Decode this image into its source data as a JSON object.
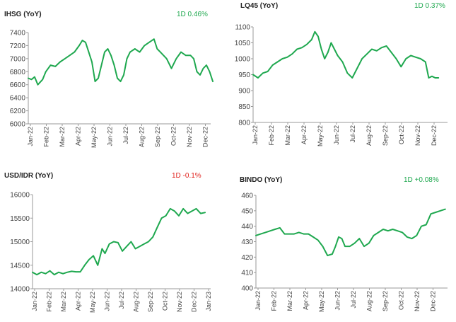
{
  "colors": {
    "line": "#1fa84f",
    "axis": "#9a9a9a",
    "text": "#444444",
    "positive": "#1fa84f",
    "negative": "#e0201b"
  },
  "chart_data": [
    {
      "id": "ihsg",
      "type": "line",
      "title": "IHSG (YoY)",
      "change_label": "1D 0.46%",
      "change_color": "positive",
      "ylim": [
        6000,
        7400
      ],
      "yticks": [
        "7400",
        "7200",
        "7000",
        "6800",
        "6600",
        "6400",
        "6200",
        "6000"
      ],
      "xticks": [
        "Jan-22",
        "Feb-22",
        "Mar-22",
        "Apr-22",
        "May-22",
        "Jun-22",
        "Jul-22",
        "Aug-22",
        "Sep-22",
        "Oct-22",
        "Nov-22",
        "Dec-22"
      ],
      "grid": false,
      "x": [
        0,
        0.2,
        0.4,
        0.6,
        0.9,
        1.1,
        1.4,
        1.7,
        2.0,
        2.3,
        2.6,
        2.9,
        3.2,
        3.4,
        3.6,
        3.8,
        4.0,
        4.2,
        4.4,
        4.6,
        4.8,
        5.0,
        5.2,
        5.4,
        5.6,
        5.8,
        6.0,
        6.2,
        6.4,
        6.7,
        7.0,
        7.3,
        7.6,
        7.9,
        8.1,
        8.3,
        8.5,
        8.7,
        9.0,
        9.3,
        9.6,
        9.9,
        10.2,
        10.4,
        10.6,
        10.8,
        11.0,
        11.2,
        11.4,
        11.6
      ],
      "series": [
        {
          "values": [
            6700,
            6680,
            6720,
            6600,
            6680,
            6800,
            6900,
            6880,
            6950,
            7000,
            7050,
            7100,
            7200,
            7280,
            7250,
            7100,
            6950,
            6650,
            6700,
            6900,
            7100,
            7150,
            7050,
            6900,
            6700,
            6650,
            6750,
            7000,
            7100,
            7150,
            7100,
            7200,
            7250,
            7300,
            7150,
            7100,
            7050,
            7000,
            6850,
            7000,
            7100,
            7050,
            7050,
            7000,
            6800,
            6750,
            6850,
            6900,
            6800,
            6650
          ]
        }
      ]
    },
    {
      "id": "lq45",
      "type": "line",
      "title": "LQ45 (YoY)",
      "change_label": "1D 0.37%",
      "change_color": "positive",
      "ylim": [
        800,
        1100
      ],
      "yticks": [
        "1100",
        "1050",
        "1000",
        "950",
        "900",
        "850",
        "800"
      ],
      "xticks": [
        "Jan-22",
        "Feb-22",
        "Mar-22",
        "Apr-22",
        "May-22",
        "Jun-22",
        "Jul-22",
        "Aug-22",
        "Sep-22",
        "Oct-22",
        "Nov-22",
        "Dec-22"
      ],
      "grid": false,
      "x": [
        0,
        0.3,
        0.6,
        0.9,
        1.2,
        1.5,
        1.8,
        2.1,
        2.4,
        2.7,
        3.0,
        3.3,
        3.6,
        3.8,
        4.0,
        4.2,
        4.4,
        4.6,
        4.8,
        5.0,
        5.2,
        5.5,
        5.8,
        6.1,
        6.4,
        6.7,
        7.0,
        7.3,
        7.6,
        7.9,
        8.2,
        8.5,
        8.8,
        9.1,
        9.4,
        9.7,
        10.0,
        10.3,
        10.6,
        10.8,
        11.0,
        11.2,
        11.4
      ],
      "series": [
        {
          "values": [
            950,
            940,
            955,
            960,
            980,
            990,
            1000,
            1005,
            1015,
            1030,
            1035,
            1045,
            1060,
            1085,
            1070,
            1030,
            1000,
            1020,
            1050,
            1030,
            1010,
            990,
            955,
            940,
            970,
            1000,
            1015,
            1030,
            1025,
            1035,
            1040,
            1020,
            1000,
            975,
            1000,
            1010,
            1005,
            1000,
            990,
            940,
            945,
            940,
            940
          ]
        }
      ]
    },
    {
      "id": "usdidr",
      "type": "line",
      "title": "USD/IDR  (YoY)",
      "change_label": "1D -0.1%",
      "change_color": "negative",
      "ylim": [
        14000,
        16000
      ],
      "yticks": [
        "16000",
        "15500",
        "15000",
        "14500",
        "14000"
      ],
      "xticks": [
        "Jan-22",
        "Feb-22",
        "Mar-22",
        "Apr-22",
        "May-22",
        "Jun-22",
        "Jul-22",
        "Aug-22",
        "Sep-22",
        "Oct-22",
        "Nov-22",
        "Dec-22",
        "Jan-23"
      ],
      "grid": false,
      "x": [
        0,
        0.3,
        0.6,
        0.9,
        1.2,
        1.5,
        1.8,
        2.1,
        2.4,
        2.7,
        3.0,
        3.3,
        3.6,
        3.9,
        4.2,
        4.5,
        4.8,
        5.0,
        5.3,
        5.6,
        5.9,
        6.2,
        6.5,
        6.8,
        7.1,
        7.4,
        7.7,
        8.0,
        8.3,
        8.6,
        8.9,
        9.2,
        9.5,
        9.8,
        10.1,
        10.4,
        10.7,
        11.0,
        11.3,
        11.6,
        11.9
      ],
      "series": [
        {
          "values": [
            14350,
            14300,
            14350,
            14320,
            14380,
            14300,
            14350,
            14320,
            14350,
            14370,
            14360,
            14360,
            14500,
            14620,
            14700,
            14500,
            14850,
            14750,
            14950,
            15000,
            14980,
            14800,
            14900,
            15000,
            14850,
            14900,
            14950,
            15000,
            15100,
            15300,
            15500,
            15550,
            15700,
            15650,
            15550,
            15700,
            15600,
            15650,
            15700,
            15600,
            15620
          ]
        }
      ]
    },
    {
      "id": "bindo",
      "type": "line",
      "title": "BINDO (YoY)",
      "change_label": "1D +0.08%",
      "change_color": "positive",
      "ylim": [
        400,
        460
      ],
      "yticks": [
        "460",
        "450",
        "440",
        "430",
        "420",
        "410",
        "400"
      ],
      "xticks": [
        "Jan-22",
        "Feb-22",
        "Mar-22",
        "Apr-22",
        "May-22",
        "Jun-22",
        "Jul-22",
        "Aug-22",
        "Sep-22",
        "Oct-22",
        "Nov-22",
        "Dec-22"
      ],
      "grid": false,
      "x": [
        0,
        0.3,
        0.6,
        0.9,
        1.2,
        1.5,
        1.8,
        2.1,
        2.4,
        2.7,
        3.0,
        3.3,
        3.6,
        3.9,
        4.2,
        4.5,
        4.8,
        5.0,
        5.2,
        5.4,
        5.6,
        5.9,
        6.2,
        6.5,
        6.8,
        7.1,
        7.4,
        7.7,
        8.0,
        8.3,
        8.6,
        8.9,
        9.2,
        9.5,
        9.8,
        10.1,
        10.4,
        10.7,
        11.0,
        11.3,
        11.6,
        11.9
      ],
      "series": [
        {
          "values": [
            434,
            435,
            436,
            437,
            438,
            439,
            435,
            435,
            435,
            436,
            435,
            435,
            433,
            431,
            427,
            421,
            422,
            427,
            433,
            432,
            427,
            427,
            429,
            432,
            427,
            429,
            434,
            436,
            438,
            437,
            438,
            437,
            436,
            433,
            432,
            434,
            440,
            441,
            448,
            449,
            450,
            451
          ]
        }
      ]
    }
  ]
}
